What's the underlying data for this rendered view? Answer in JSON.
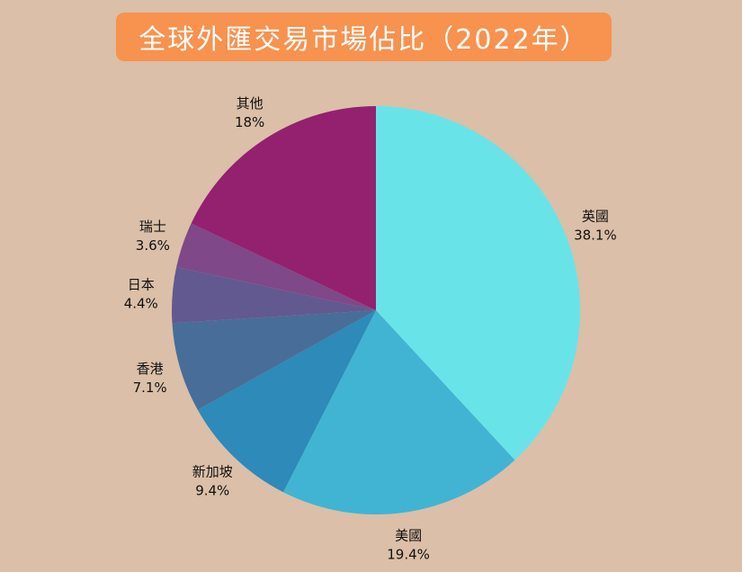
{
  "title": "全球外匯交易市場佔比（2022年）",
  "colors": {
    "background": "#dbbfa8",
    "title_box": "#f7924f",
    "title_text": "#ffffff"
  },
  "chart_data": {
    "type": "pie",
    "title": "全球外匯交易市場佔比（2022年）",
    "unit": "%",
    "slices": [
      {
        "label": "英國",
        "value": 38.1,
        "value_label": "38.1%",
        "color": "#68e4e8"
      },
      {
        "label": "美國",
        "value": 19.4,
        "value_label": "19.4%",
        "color": "#41b4d4"
      },
      {
        "label": "新加坡",
        "value": 9.4,
        "value_label": "9.4%",
        "color": "#2e8ab8"
      },
      {
        "label": "香港",
        "value": 7.1,
        "value_label": "7.1%",
        "color": "#486d98"
      },
      {
        "label": "日本",
        "value": 4.4,
        "value_label": "4.4%",
        "color": "#625991"
      },
      {
        "label": "瑞士",
        "value": 3.6,
        "value_label": "3.6%",
        "color": "#7f4889"
      },
      {
        "label": "其他",
        "value": 18,
        "value_label": "18%",
        "color": "#942070"
      }
    ],
    "legend": "none",
    "label_placement": "outside"
  }
}
